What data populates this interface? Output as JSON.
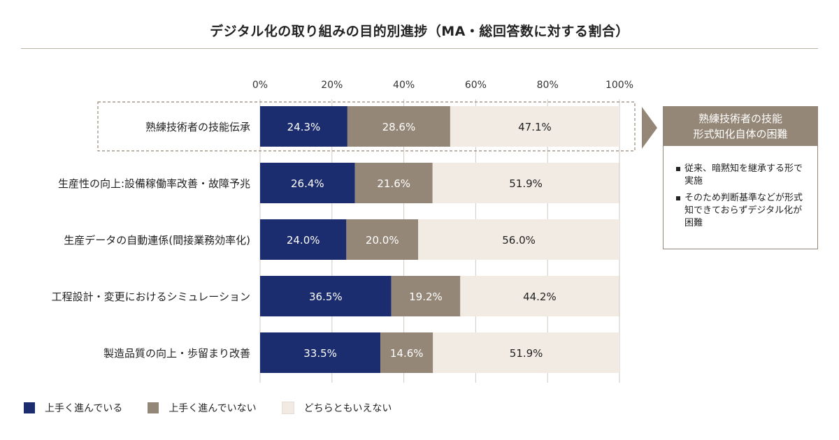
{
  "chart_data": {
    "type": "bar",
    "orientation": "horizontal",
    "stacked": true,
    "title": "デジタル化の取り組みの目的別進捗（MA・総回答数に対する割合）",
    "categories": [
      "熟練技術者の技能伝承",
      "生産性の向上:設備稼働率改善・故障予兆",
      "生産データの自動連係(間接業務効率化)",
      "工程設計・変更におけるシミュレーション",
      "製造品質の向上・歩留まり改善"
    ],
    "series": [
      {
        "name": "上手く進んでいる",
        "color": "#1b2d6e",
        "text_color": "#ffffff",
        "values": [
          24.3,
          26.4,
          24.0,
          36.5,
          33.5
        ]
      },
      {
        "name": "上手く進んでいない",
        "color": "#958777",
        "text_color": "#ffffff",
        "values": [
          28.6,
          21.6,
          20.0,
          19.2,
          14.6
        ]
      },
      {
        "name": "どちらともいえない",
        "color": "#f2ebe3",
        "text_color": "#222222",
        "values": [
          47.1,
          51.9,
          56.0,
          44.2,
          51.9
        ]
      }
    ],
    "data_labels": [
      [
        "24.3%",
        "28.6%",
        "47.1%"
      ],
      [
        "26.4%",
        "21.6%",
        "51.9%"
      ],
      [
        "24.0%",
        "20.0%",
        "56.0%"
      ],
      [
        "36.5%",
        "19.2%",
        "44.2%"
      ],
      [
        "33.5%",
        "14.6%",
        "51.9%"
      ]
    ],
    "x_ticks": [
      "0%",
      "20%",
      "40%",
      "60%",
      "80%",
      "100%"
    ],
    "xlim": [
      0,
      100
    ],
    "grid": true,
    "legend_position": "bottom-left",
    "highlighted_category": "熟練技術者の技能伝承"
  },
  "callout": {
    "title_lines": [
      "熟練技術者の技能",
      "形式知化自体の困難"
    ],
    "items": [
      "従来、暗黙知を継承する形で実施",
      "そのため判断基準などが形式知できておらずデジタル化が困難"
    ]
  }
}
